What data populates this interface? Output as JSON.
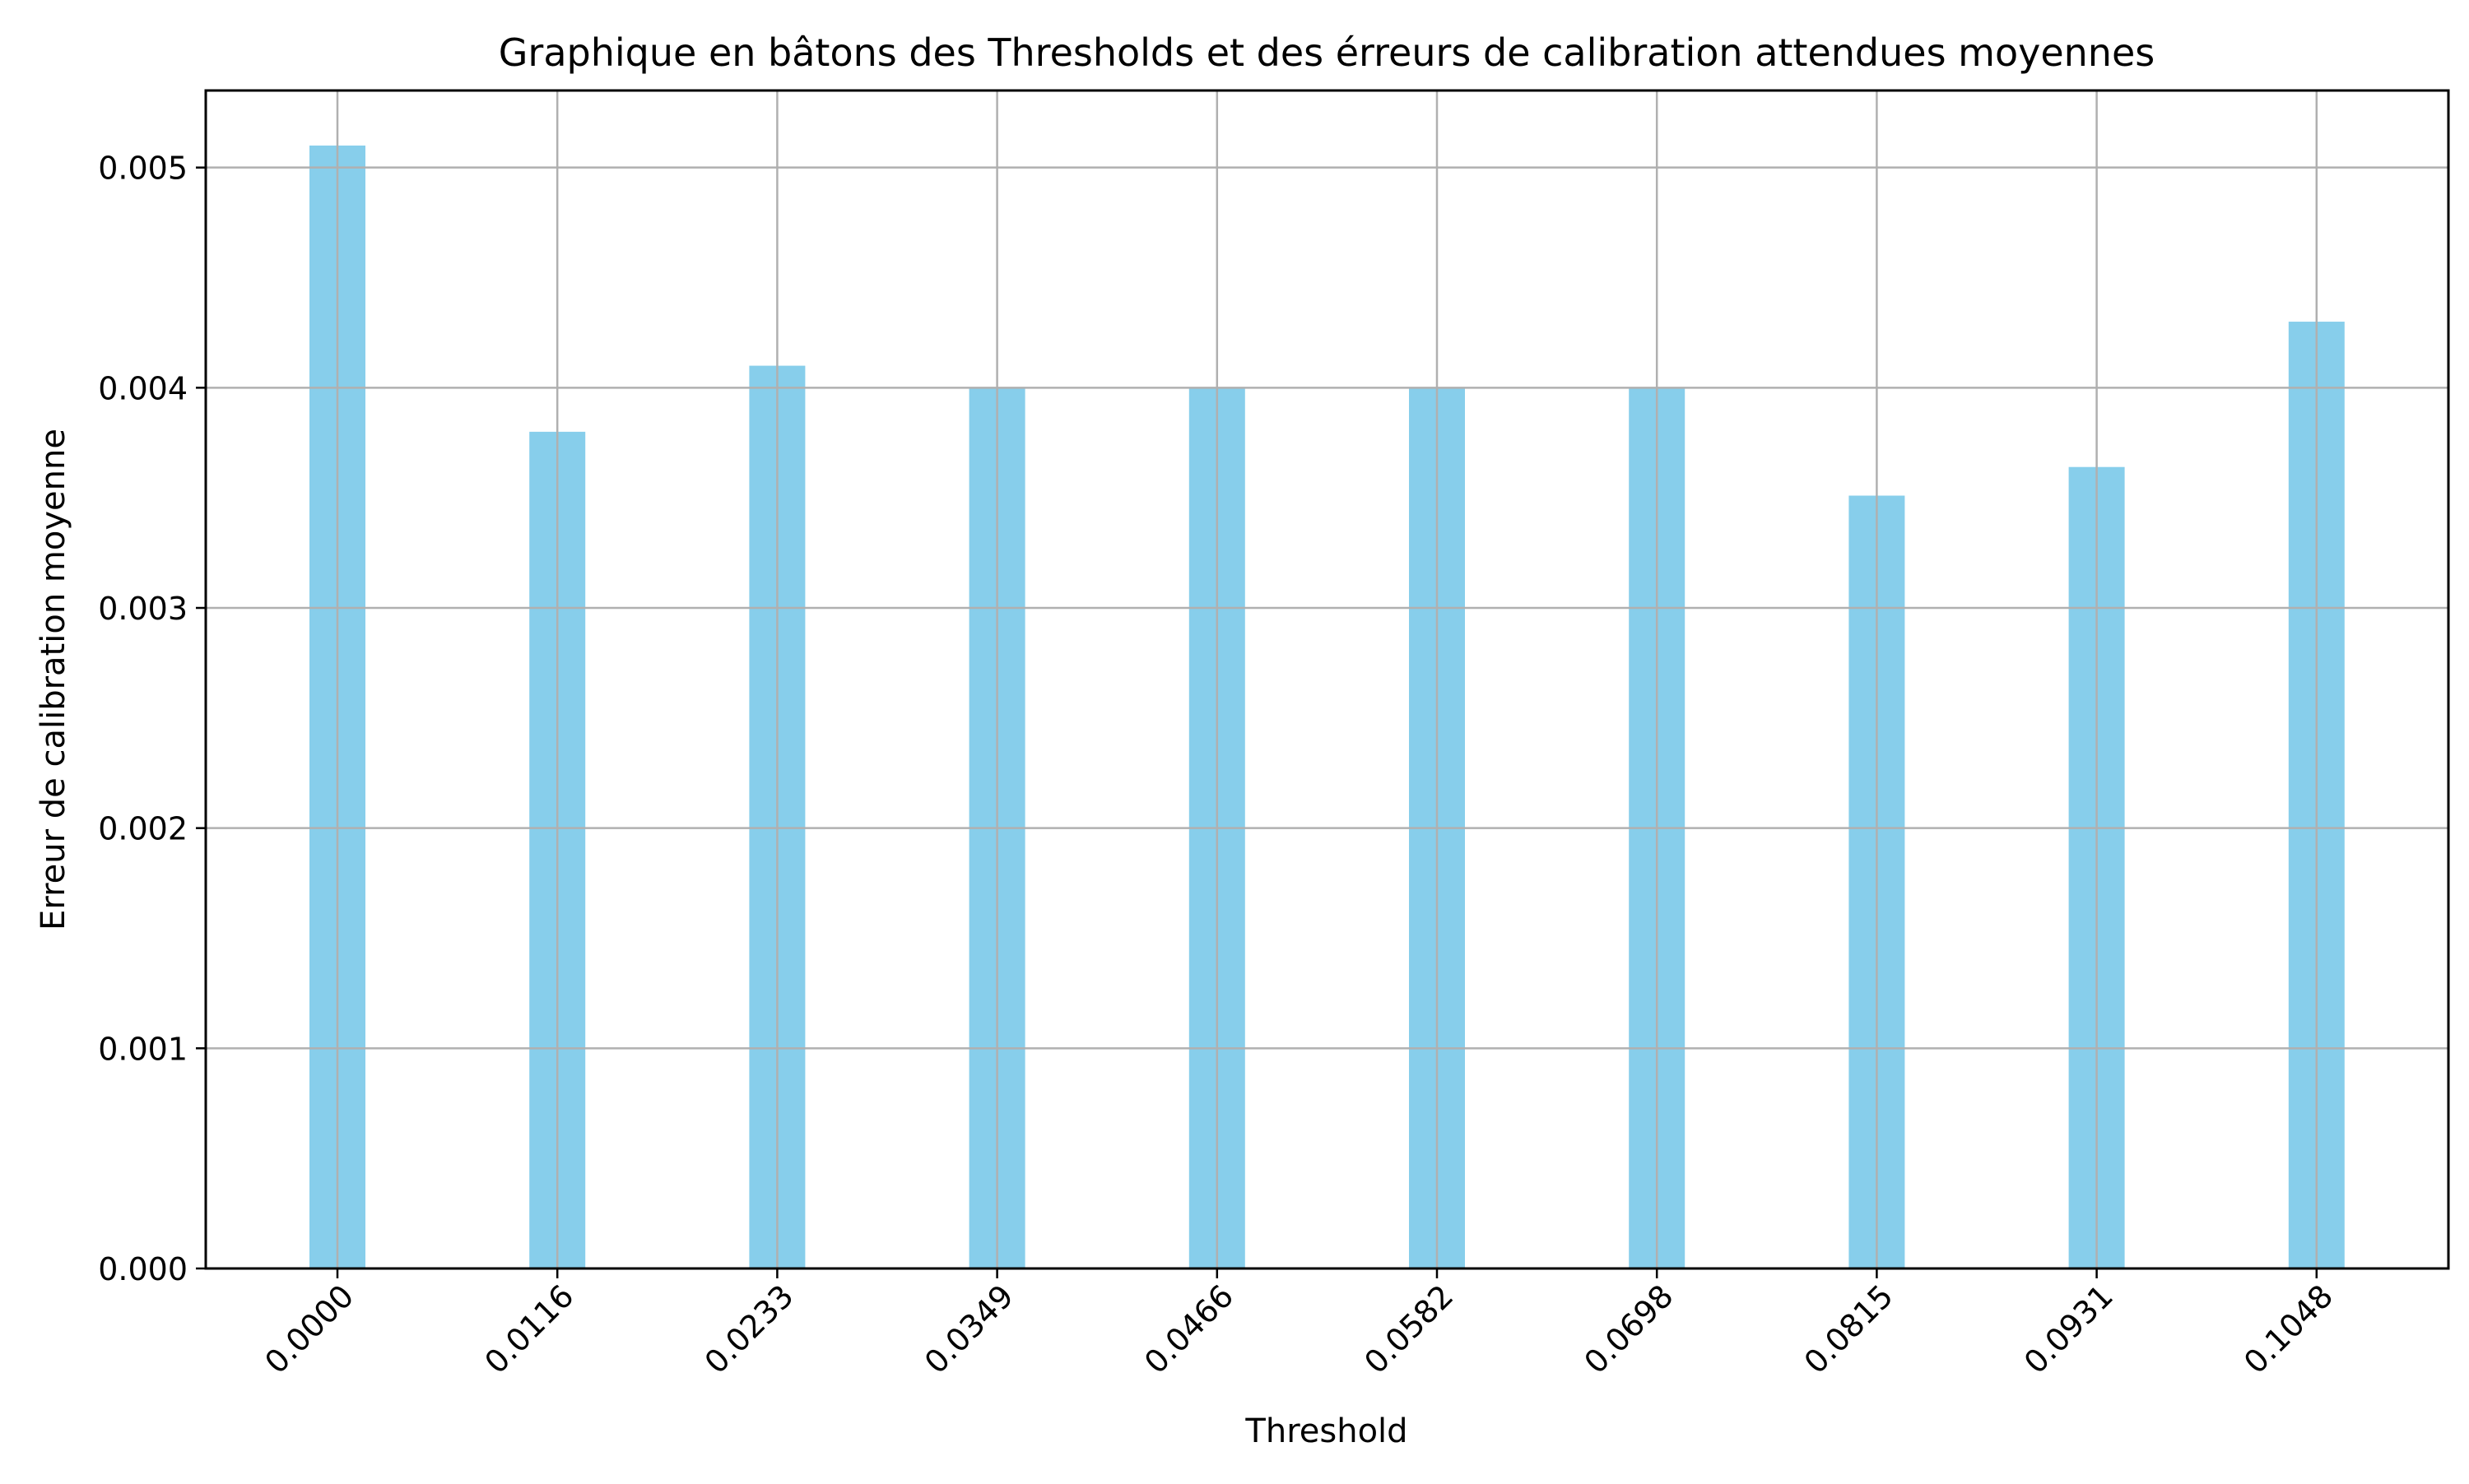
{
  "chart_data": {
    "type": "bar",
    "title": "Graphique en bâtons des Thresholds et des érreurs de calibration attendues moyennes",
    "xlabel": "Threshold",
    "ylabel": "Erreur de calibration moyenne",
    "categories": [
      "0.0000",
      "0.0116",
      "0.0233",
      "0.0349",
      "0.0466",
      "0.0582",
      "0.0698",
      "0.0815",
      "0.0931",
      "0.1048"
    ],
    "values": [
      0.0051,
      0.0038,
      0.0041,
      0.004,
      0.004,
      0.004,
      0.004,
      0.00351,
      0.00364,
      0.0043
    ],
    "ylim": [
      0,
      0.00535
    ],
    "yticks": [
      "0.000",
      "0.001",
      "0.002",
      "0.003",
      "0.004",
      "0.005"
    ],
    "ytick_values": [
      0,
      0.001,
      0.002,
      0.003,
      0.004,
      0.005
    ],
    "grid": true,
    "bar_color": "#87ceeb",
    "grid_color": "#b0b0b0"
  }
}
